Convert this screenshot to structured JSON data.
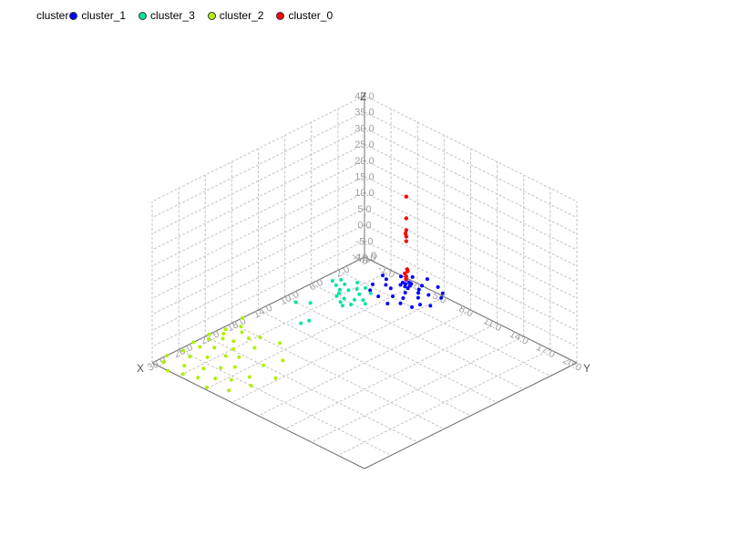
{
  "chart_data": {
    "type": "scatter3d",
    "legend": {
      "title": "cluster",
      "placement": "top-left",
      "entries": [
        {
          "name": "cluster_1",
          "color": "#0000ff"
        },
        {
          "name": "cluster_3",
          "color": "#00e5a0"
        },
        {
          "name": "cluster_2",
          "color": "#b0f000"
        },
        {
          "name": "cluster_0",
          "color": "#ff0000"
        }
      ]
    },
    "axes": {
      "x": {
        "label": "X",
        "range": [
          -2.0,
          30.0
        ],
        "ticks": [
          "30.0",
          "26.0",
          "22.0",
          "18.0",
          "14.0",
          "10.0",
          "6.0",
          "2.0",
          "-2.0"
        ]
      },
      "y": {
        "label": "Y",
        "range": [
          -7.0,
          20.0
        ],
        "ticks": [
          "20.0",
          "17.0",
          "14.0",
          "11.0",
          "8.0",
          "5.0",
          "2.0",
          "-1.0",
          "-4.0"
        ]
      },
      "z": {
        "label": "Z",
        "range": [
          -15.0,
          40.0
        ],
        "ticks": [
          "40.0",
          "35.0",
          "30.0",
          "25.0",
          "20.0",
          "15.0",
          "10.0",
          "5.0",
          "0.0",
          "-5.0",
          "-10.0"
        ]
      }
    },
    "grid": true,
    "series": [
      {
        "name": "cluster_1",
        "color": "#0000ff",
        "points": [
          [
            -0.6,
            -0.6,
            -14.0
          ],
          [
            -0.9,
            -0.3,
            -14.6
          ],
          [
            -0.2,
            -0.9,
            -14.3
          ],
          [
            0.4,
            0.2,
            -14.8
          ],
          [
            -1.2,
            0.6,
            -15.0
          ],
          [
            0.8,
            -1.3,
            -14.9
          ],
          [
            -0.5,
            1.1,
            -14.7
          ],
          [
            1.3,
            0.7,
            -15.0
          ],
          [
            -1.5,
            -0.9,
            -14.9
          ],
          [
            0.1,
            1.6,
            -15.0
          ],
          [
            1.8,
            -0.2,
            -15.0
          ],
          [
            -2.0,
            0.3,
            -15.0
          ],
          [
            0.6,
            -2.1,
            -15.0
          ],
          [
            -1.1,
            1.9,
            -15.0
          ],
          [
            2.3,
            1.2,
            -15.0
          ],
          [
            -2.6,
            -1.4,
            -15.0
          ],
          [
            1.0,
            2.6,
            -15.0
          ],
          [
            -0.3,
            -2.8,
            -15.0
          ],
          [
            2.9,
            -1.1,
            -15.0
          ],
          [
            -3.0,
            1.5,
            -15.0
          ],
          [
            0.2,
            0.0,
            -13.2
          ],
          [
            -0.4,
            0.3,
            -12.6
          ],
          [
            0.3,
            -0.2,
            -12.0
          ],
          [
            -0.1,
            -0.1,
            -11.4
          ],
          [
            0.0,
            0.2,
            -13.8
          ],
          [
            -1.8,
            -2.2,
            -15.0
          ],
          [
            2.0,
            2.4,
            -15.0
          ],
          [
            -2.4,
            2.6,
            -15.0
          ],
          [
            2.6,
            -2.4,
            -15.0
          ],
          [
            3.3,
            0.4,
            -15.0
          ],
          [
            -3.4,
            -0.2,
            -15.0
          ],
          [
            0.4,
            3.4,
            -15.0
          ],
          [
            -0.6,
            -3.5,
            -15.0
          ],
          [
            1.5,
            -3.0,
            -15.0
          ],
          [
            -1.6,
            3.1,
            -15.0
          ]
        ]
      },
      {
        "name": "cluster_3",
        "color": "#00e5a0",
        "points": [
          [
            4.0,
            -2.6,
            -15.0
          ],
          [
            4.6,
            -1.6,
            -15.0
          ],
          [
            3.4,
            -3.4,
            -15.0
          ],
          [
            5.2,
            -2.2,
            -15.0
          ],
          [
            4.2,
            -3.8,
            -15.0
          ],
          [
            3.0,
            -2.0,
            -15.0
          ],
          [
            5.8,
            -3.0,
            -15.0
          ],
          [
            4.8,
            -4.4,
            -15.0
          ],
          [
            3.6,
            -4.8,
            -15.0
          ],
          [
            6.2,
            -1.8,
            -15.0
          ],
          [
            2.6,
            -3.0,
            -15.0
          ],
          [
            5.4,
            -4.0,
            -15.0
          ],
          [
            4.4,
            -5.2,
            -15.0
          ],
          [
            6.6,
            -2.8,
            -15.0
          ],
          [
            3.2,
            -5.6,
            -15.0
          ],
          [
            5.0,
            -1.0,
            -15.0
          ],
          [
            2.4,
            -4.2,
            -15.0
          ],
          [
            6.0,
            -3.8,
            -15.0
          ],
          [
            4.0,
            -6.0,
            -15.0
          ],
          [
            7.0,
            -2.2,
            -15.0
          ],
          [
            9.0,
            -4.6,
            -15.0
          ],
          [
            11.8,
            -2.4,
            -15.0
          ],
          [
            12.8,
            -2.6,
            -15.0
          ],
          [
            10.0,
            -5.6,
            -15.0
          ]
        ]
      },
      {
        "name": "cluster_2",
        "color": "#b0f000",
        "points": [
          [
            19.4,
            -6.6,
            -15.0
          ],
          [
            20.2,
            -6.2,
            -15.0
          ],
          [
            18.6,
            -5.2,
            -15.0
          ],
          [
            21.0,
            -5.6,
            -15.0
          ],
          [
            17.8,
            -6.0,
            -15.0
          ],
          [
            22.2,
            -6.4,
            -15.0
          ],
          [
            20.6,
            -4.6,
            -15.0
          ],
          [
            19.0,
            -4.0,
            -15.0
          ],
          [
            23.0,
            -5.0,
            -15.0
          ],
          [
            21.8,
            -3.6,
            -15.0
          ],
          [
            24.0,
            -6.0,
            -15.0
          ],
          [
            25.0,
            -4.2,
            -15.0
          ],
          [
            23.4,
            -3.2,
            -15.0
          ],
          [
            26.2,
            -5.4,
            -15.0
          ],
          [
            22.6,
            -2.2,
            -15.0
          ],
          [
            27.0,
            -3.0,
            -15.0
          ],
          [
            25.6,
            -2.0,
            -15.0
          ],
          [
            28.0,
            -4.6,
            -15.0
          ],
          [
            24.4,
            -1.2,
            -15.0
          ],
          [
            27.6,
            -1.0,
            -15.0
          ],
          [
            21.4,
            -7.0,
            -15.0
          ],
          [
            23.8,
            -7.0,
            -15.0
          ],
          [
            25.8,
            -6.6,
            -15.0
          ],
          [
            20.0,
            -2.4,
            -15.0
          ],
          [
            18.0,
            -3.4,
            -15.0
          ],
          [
            28.8,
            -2.2,
            -15.0
          ],
          [
            26.6,
            0.2,
            -15.0
          ],
          [
            29.4,
            -3.6,
            -15.0
          ],
          [
            24.8,
            1.0,
            -15.0
          ],
          [
            22.0,
            0.4,
            -15.0
          ],
          [
            16.4,
            -7.0,
            -15.0
          ],
          [
            29.0,
            -6.4,
            -15.0
          ],
          [
            27.8,
            -7.0,
            -15.0
          ],
          [
            30.0,
            -5.0,
            -15.0
          ],
          [
            29.6,
            -0.4,
            -15.0
          ],
          [
            19.8,
            1.0,
            -15.0
          ],
          [
            26.0,
            2.2,
            -15.0
          ],
          [
            28.4,
            1.4,
            -15.0
          ],
          [
            23.0,
            2.8,
            -15.0
          ],
          [
            17.4,
            -1.4,
            -15.0
          ]
        ]
      },
      {
        "name": "cluster_0",
        "color": "#ff0000",
        "points": [
          [
            0.0,
            0.0,
            -10.0
          ],
          [
            0.1,
            -0.1,
            -9.0
          ],
          [
            -0.1,
            0.1,
            -8.2
          ],
          [
            0.0,
            0.1,
            -7.4
          ],
          [
            0.05,
            0.0,
            -10.8
          ],
          [
            0.0,
            0.0,
            5.8
          ],
          [
            0.05,
            -0.05,
            4.6
          ],
          [
            0.0,
            0.0,
            3.6
          ],
          [
            0.0,
            0.0,
            17.2
          ],
          [
            0.0,
            0.0,
            9.8
          ],
          [
            0.0,
            0.0,
            2.0
          ]
        ]
      }
    ]
  }
}
